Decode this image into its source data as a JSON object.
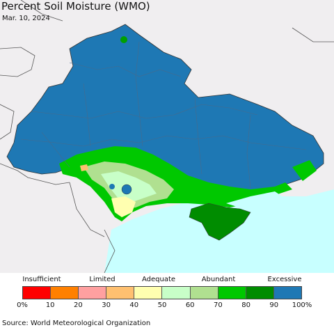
{
  "title": "Percent Soil Moisture (WMO)",
  "date": "Mar. 10, 2024",
  "legend": {
    "categories": [
      "Insufficient",
      "Limited",
      "Adequate",
      "Abundant",
      "Excessive"
    ],
    "colors": [
      "#ff0000",
      "#ff8000",
      "#ffa0a0",
      "#ffc070",
      "#ffffb0",
      "#c8ffc8",
      "#b0e090",
      "#00c800",
      "#008c00",
      "#1e78b4"
    ],
    "ticks": [
      "0%",
      "10",
      "20",
      "30",
      "40",
      "50",
      "60",
      "70",
      "80",
      "90",
      "100%"
    ]
  },
  "map": {
    "sea_color": "#c8ffff",
    "land_outside_color": "#f0eef0",
    "dominant_color": "#1e78b4",
    "features": [
      "ukraine-region",
      "black-sea",
      "sea-of-azov",
      "crimea"
    ]
  },
  "source": "Source: World Meteorological Organization"
}
